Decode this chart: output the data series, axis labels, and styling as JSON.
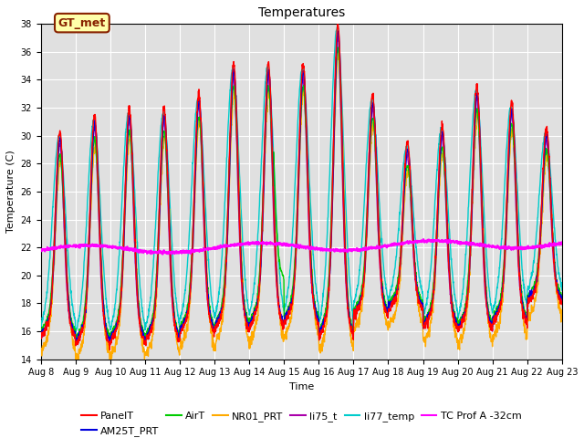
{
  "title": "Temperatures",
  "xlabel": "Time",
  "ylabel": "Temperature (C)",
  "ylim": [
    14,
    38
  ],
  "xlim": [
    0,
    15
  ],
  "x_tick_labels": [
    "Aug 8",
    "Aug 9",
    "Aug 10",
    "Aug 11",
    "Aug 12",
    "Aug 13",
    "Aug 14",
    "Aug 15",
    "Aug 16",
    "Aug 17",
    "Aug 18",
    "Aug 19",
    "Aug 20",
    "Aug 21",
    "Aug 22",
    "Aug 23"
  ],
  "background_color": "#e0e0e0",
  "fig_bg": "#ffffff",
  "series": {
    "PanelT": {
      "color": "#ff0000",
      "lw": 1.0,
      "zorder": 5
    },
    "AM25T_PRT": {
      "color": "#0000dd",
      "lw": 1.0,
      "zorder": 4
    },
    "AirT": {
      "color": "#00cc00",
      "lw": 1.0,
      "zorder": 3
    },
    "NR01_PRT": {
      "color": "#ffaa00",
      "lw": 1.0,
      "zorder": 3
    },
    "li75_t": {
      "color": "#aa00aa",
      "lw": 1.0,
      "zorder": 3
    },
    "li77_temp": {
      "color": "#00cccc",
      "lw": 1.0,
      "zorder": 3
    },
    "TC Prof A -32cm": {
      "color": "#ff00ff",
      "lw": 1.5,
      "zorder": 6
    }
  },
  "yticks": [
    14,
    16,
    18,
    20,
    22,
    24,
    26,
    28,
    30,
    32,
    34,
    36,
    38
  ],
  "annotation_text": "GT_met",
  "annotation_bg": "#ffffaa",
  "annotation_edge": "#882200",
  "title_fontsize": 10,
  "label_fontsize": 8,
  "tick_fontsize": 7,
  "legend_fontsize": 8
}
